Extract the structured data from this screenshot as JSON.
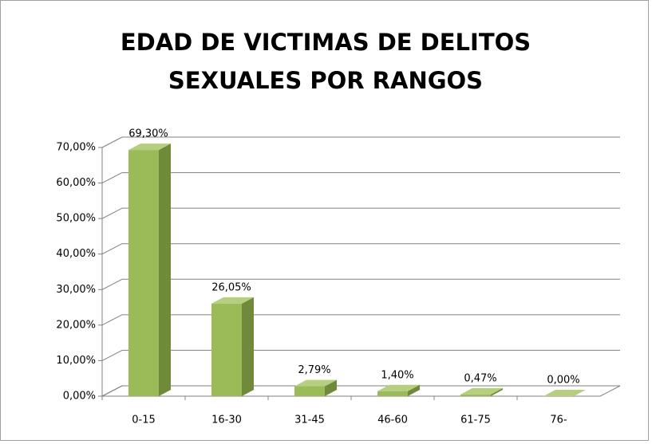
{
  "chart_data": {
    "type": "bar3d",
    "title": [
      "EDAD DE VICTIMAS DE DELITOS",
      "SEXUALES POR RANGOS"
    ],
    "categories": [
      "0-15",
      "16-30",
      "31-45",
      "46-60",
      "61-75",
      "76-"
    ],
    "values": [
      69.3,
      26.05,
      2.79,
      1.4,
      0.47,
      0.0
    ],
    "value_labels": [
      "69,30%",
      "26,05%",
      "2,79%",
      "1,40%",
      "0,47%",
      "0,00%"
    ],
    "color": "#9bbb59",
    "ylim": [
      0,
      70
    ],
    "yticks": [
      {
        "value": 0,
        "label": "0,00%"
      },
      {
        "value": 10,
        "label": "10,00%"
      },
      {
        "value": 20,
        "label": "20,00%"
      },
      {
        "value": 30,
        "label": "30,00%"
      },
      {
        "value": 40,
        "label": "40,00%"
      },
      {
        "value": 50,
        "label": "50,00%"
      },
      {
        "value": 60,
        "label": "60,00%"
      },
      {
        "value": 70,
        "label": "70,00%"
      }
    ],
    "grid": true
  }
}
